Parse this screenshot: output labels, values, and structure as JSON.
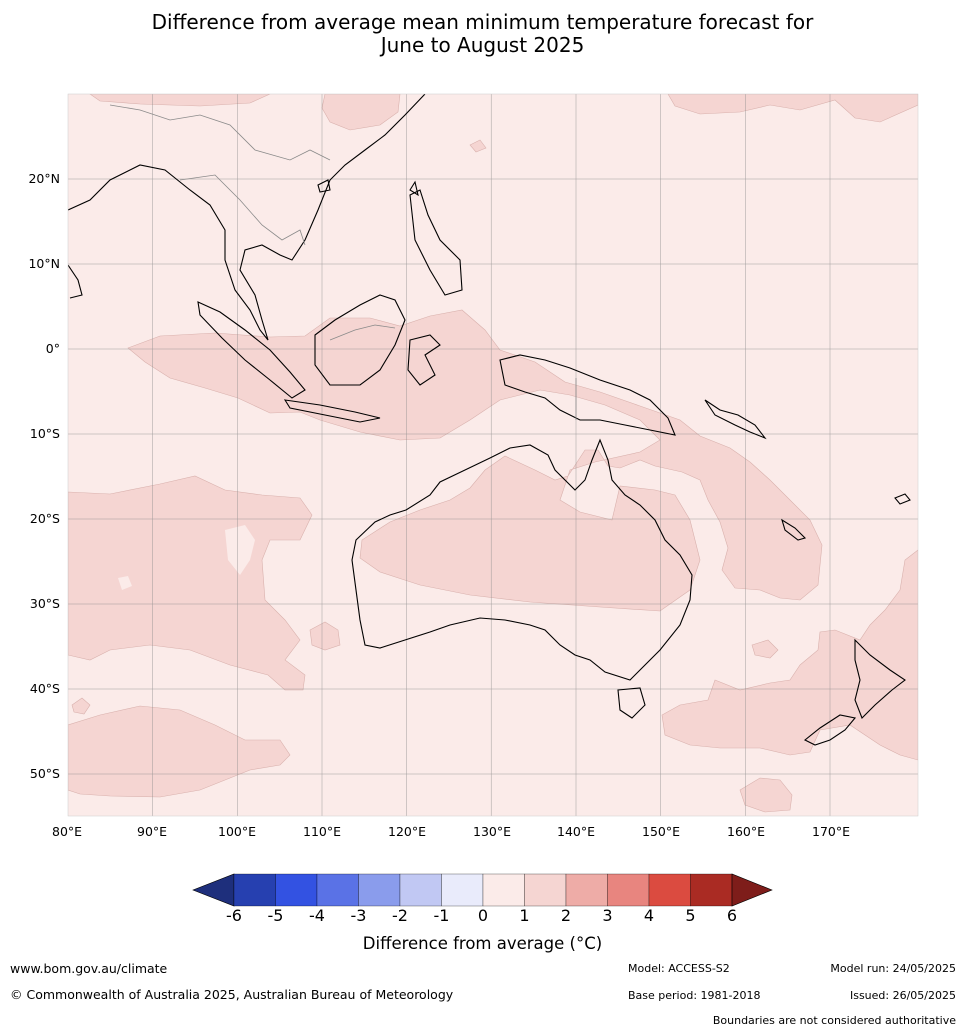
{
  "title": {
    "line1": "Difference from average mean minimum temperature forecast for",
    "line2": "June to August 2025"
  },
  "map": {
    "extent": {
      "lon": [
        80,
        180
      ],
      "lat": [
        -55,
        30
      ]
    },
    "lat_labels": [
      "20°N",
      "10°N",
      "0°",
      "10°S",
      "20°S",
      "30°S",
      "40°S",
      "50°S"
    ],
    "lon_labels": [
      "80°E",
      "90°E",
      "100°E",
      "110°E",
      "120°E",
      "130°E",
      "140°E",
      "150°E",
      "160°E",
      "170°E"
    ],
    "background_color": "#fbebe9",
    "anomaly_1_2_color": "#f5d5d2"
  },
  "colorbar": {
    "ticks": [
      "-6",
      "-5",
      "-4",
      "-3",
      "-2",
      "-1",
      "0",
      "1",
      "2",
      "3",
      "4",
      "5",
      "6"
    ],
    "under_color": "#1e2f7c",
    "over_color": "#7e1d1a",
    "colors": [
      "#2640b0",
      "#3352e2",
      "#5a72e6",
      "#8a9cec",
      "#c1c8f3",
      "#e9ebfb",
      "#fbebe9",
      "#f5d5d2",
      "#eeaca7",
      "#e8857f",
      "#db4b40",
      "#aa2b23"
    ],
    "label": "Difference from average (°C)"
  },
  "footer": {
    "url": "www.bom.gov.au/climate",
    "copyright": "© Commonwealth of Australia 2025, Australian Bureau of Meteorology",
    "model": "Model: ACCESS-S2",
    "base_period": "Base period: 1981-2018",
    "model_run": "Model run: 24/05/2025",
    "issued": "Issued: 26/05/2025",
    "disclaimer": "Boundaries are not considered authoritative"
  }
}
